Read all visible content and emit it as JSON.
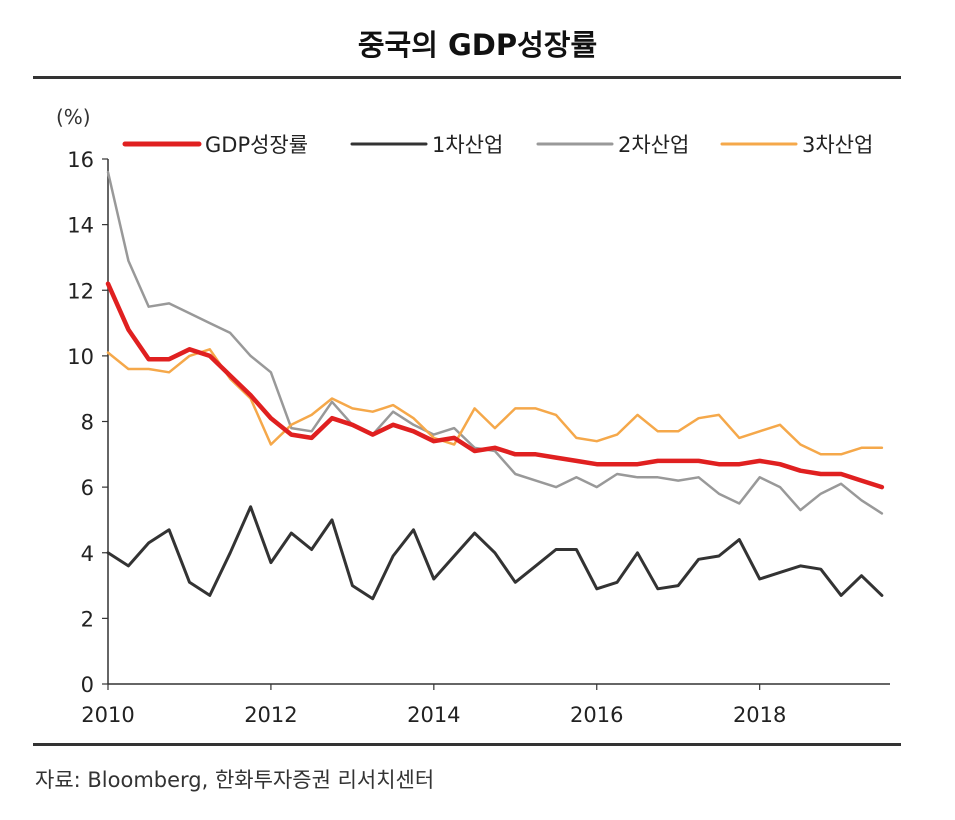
{
  "header": {
    "title": "중국의 GDP성장률"
  },
  "footer": {
    "source": "자료: Bloomberg, 한화투자증권 리서치센터"
  },
  "colors": {
    "gdp": "#e02020",
    "primary": "#333333",
    "secondary": "#999999",
    "tertiary": "#f5a84a"
  },
  "chart_data": {
    "type": "line",
    "title": "중국의 GDP성장률",
    "ylabel": "(%)",
    "xlabel": "",
    "xlim": [
      2010,
      2019.6
    ],
    "ylim": [
      0,
      16
    ],
    "yticks": [
      0,
      2,
      4,
      6,
      8,
      10,
      12,
      14,
      16
    ],
    "xticks": [
      2010,
      2012,
      2014,
      2016,
      2018
    ],
    "grid": false,
    "legend": "top",
    "series": [
      {
        "name": "GDP성장률",
        "color": "#e02020",
        "x": [
          2010.0,
          2010.25,
          2010.5,
          2010.75,
          2011.0,
          2011.25,
          2011.5,
          2011.75,
          2012.0,
          2012.25,
          2012.5,
          2012.75,
          2013.0,
          2013.25,
          2013.5,
          2013.75,
          2014.0,
          2014.25,
          2014.5,
          2014.75,
          2015.0,
          2015.25,
          2015.5,
          2015.75,
          2016.0,
          2016.25,
          2016.5,
          2016.75,
          2017.0,
          2017.25,
          2017.5,
          2017.75,
          2018.0,
          2018.25,
          2018.5,
          2018.75,
          2019.0,
          2019.25,
          2019.5
        ],
        "values": [
          12.2,
          10.8,
          9.9,
          9.9,
          10.2,
          10.0,
          9.4,
          8.8,
          8.1,
          7.6,
          7.5,
          8.1,
          7.9,
          7.6,
          7.9,
          7.7,
          7.4,
          7.5,
          7.1,
          7.2,
          7.0,
          7.0,
          6.9,
          6.8,
          6.7,
          6.7,
          6.7,
          6.8,
          6.8,
          6.8,
          6.7,
          6.7,
          6.8,
          6.7,
          6.5,
          6.4,
          6.4,
          6.2,
          6.0
        ]
      },
      {
        "name": "1차산업",
        "color": "#333333",
        "x": [
          2010.0,
          2010.25,
          2010.5,
          2010.75,
          2011.0,
          2011.25,
          2011.5,
          2011.75,
          2012.0,
          2012.25,
          2012.5,
          2012.75,
          2013.0,
          2013.25,
          2013.5,
          2013.75,
          2014.0,
          2014.25,
          2014.5,
          2014.75,
          2015.0,
          2015.25,
          2015.5,
          2015.75,
          2016.0,
          2016.25,
          2016.5,
          2016.75,
          2017.0,
          2017.25,
          2017.5,
          2017.75,
          2018.0,
          2018.25,
          2018.5,
          2018.75,
          2019.0,
          2019.25,
          2019.5
        ],
        "values": [
          4.0,
          3.6,
          4.3,
          4.7,
          3.1,
          2.7,
          4.0,
          5.4,
          3.7,
          4.6,
          4.1,
          5.0,
          3.0,
          2.6,
          3.9,
          4.7,
          3.2,
          3.9,
          4.6,
          4.0,
          3.1,
          3.6,
          4.1,
          4.1,
          2.9,
          3.1,
          4.0,
          2.9,
          3.0,
          3.8,
          3.9,
          4.4,
          3.2,
          3.4,
          3.6,
          3.5,
          2.7,
          3.3,
          2.7
        ]
      },
      {
        "name": "2차산업",
        "color": "#999999",
        "x": [
          2010.0,
          2010.25,
          2010.5,
          2010.75,
          2011.0,
          2011.25,
          2011.5,
          2011.75,
          2012.0,
          2012.25,
          2012.5,
          2012.75,
          2013.0,
          2013.25,
          2013.5,
          2013.75,
          2014.0,
          2014.25,
          2014.5,
          2014.75,
          2015.0,
          2015.25,
          2015.5,
          2015.75,
          2016.0,
          2016.25,
          2016.5,
          2016.75,
          2017.0,
          2017.25,
          2017.5,
          2017.75,
          2018.0,
          2018.25,
          2018.5,
          2018.75,
          2019.0,
          2019.25,
          2019.5
        ],
        "values": [
          15.6,
          12.9,
          11.5,
          11.6,
          11.3,
          11.0,
          10.7,
          10.0,
          9.5,
          7.8,
          7.7,
          8.6,
          7.9,
          7.6,
          8.3,
          7.9,
          7.6,
          7.8,
          7.2,
          7.1,
          6.4,
          6.2,
          6.0,
          6.3,
          6.0,
          6.4,
          6.3,
          6.3,
          6.2,
          6.3,
          5.8,
          5.5,
          6.3,
          6.0,
          5.3,
          5.8,
          6.1,
          5.6,
          5.2
        ]
      },
      {
        "name": "3차산업",
        "color": "#f5a84a",
        "x": [
          2010.0,
          2010.25,
          2010.5,
          2010.75,
          2011.0,
          2011.25,
          2011.5,
          2011.75,
          2012.0,
          2012.25,
          2012.5,
          2012.75,
          2013.0,
          2013.25,
          2013.5,
          2013.75,
          2014.0,
          2014.25,
          2014.5,
          2014.75,
          2015.0,
          2015.25,
          2015.5,
          2015.75,
          2016.0,
          2016.25,
          2016.5,
          2016.75,
          2017.0,
          2017.25,
          2017.5,
          2017.75,
          2018.0,
          2018.25,
          2018.5,
          2018.75,
          2019.0,
          2019.25,
          2019.5
        ],
        "values": [
          10.1,
          9.6,
          9.6,
          9.5,
          10.0,
          10.2,
          9.3,
          8.7,
          7.3,
          7.9,
          8.2,
          8.7,
          8.4,
          8.3,
          8.5,
          8.1,
          7.5,
          7.3,
          8.4,
          7.8,
          8.4,
          8.4,
          8.2,
          7.5,
          7.4,
          7.6,
          8.2,
          7.7,
          7.7,
          8.1,
          8.2,
          7.5,
          7.7,
          7.9,
          7.3,
          7.0,
          7.0,
          7.2,
          7.2
        ]
      }
    ]
  }
}
